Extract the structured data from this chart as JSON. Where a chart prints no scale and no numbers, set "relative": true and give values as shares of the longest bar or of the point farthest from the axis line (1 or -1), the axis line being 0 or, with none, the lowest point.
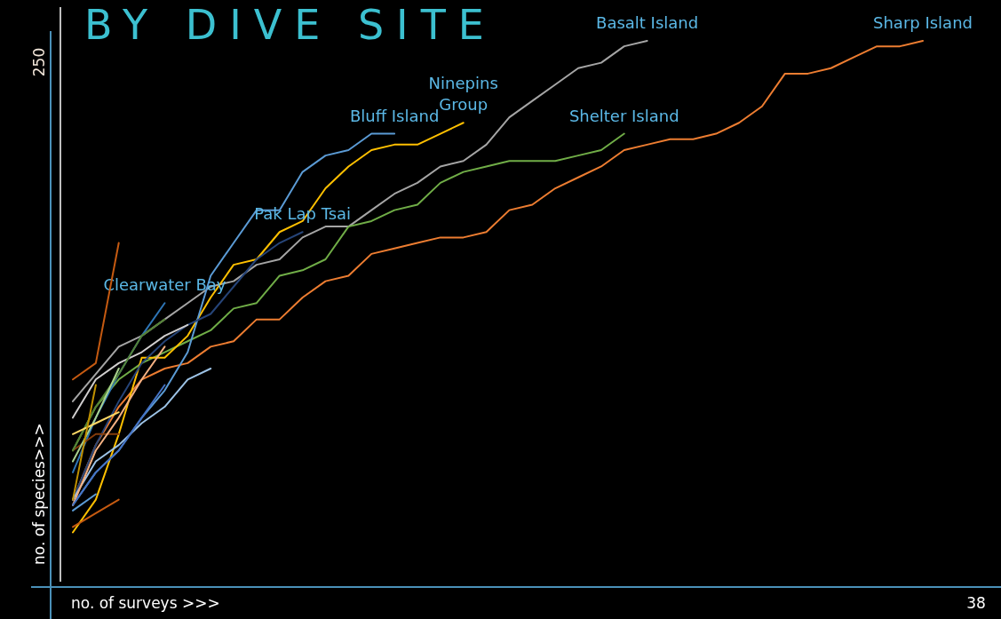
{
  "chart_data": {
    "type": "line",
    "title": "BY DIVE SITE",
    "xlabel": "no. of surveys >>>",
    "ylabel": "no. of species>>>",
    "relative": true,
    "annotations": [
      "250",
      "38"
    ],
    "categories": [
      null,
      null,
      null,
      null,
      null,
      null,
      null,
      null,
      null,
      null,
      null,
      null,
      null,
      null,
      null,
      null,
      null,
      null,
      null,
      null,
      null,
      null,
      null,
      null,
      null,
      null,
      null,
      null,
      null,
      null,
      null,
      null,
      null,
      null,
      null,
      null,
      null,
      null
    ],
    "series": [
      {
        "name": "Sharp Island",
        "color": "#ed7d31",
        "values": [
          0.16,
          0.26,
          0.33,
          0.38,
          0.4,
          0.41,
          0.44,
          0.45,
          0.49,
          0.49,
          0.53,
          0.56,
          0.57,
          0.61,
          0.62,
          0.63,
          0.64,
          0.64,
          0.65,
          0.69,
          0.7,
          0.73,
          0.75,
          0.77,
          0.8,
          0.81,
          0.82,
          0.82,
          0.83,
          0.85,
          0.88,
          0.94,
          0.94,
          0.95,
          0.97,
          0.99,
          0.99,
          1.0
        ]
      },
      {
        "name": "Basalt Island",
        "color": "#a5a5a5",
        "values": [
          0.34,
          0.39,
          0.44,
          0.46,
          0.49,
          0.52,
          0.55,
          0.56,
          0.59,
          0.6,
          0.64,
          0.66,
          0.66,
          0.69,
          0.72,
          0.74,
          0.77,
          0.78,
          0.81,
          0.86,
          0.89,
          0.92,
          0.95,
          0.96,
          0.99,
          1.0,
          null,
          null,
          null,
          null,
          null,
          null,
          null,
          null,
          null,
          null,
          null,
          null
        ]
      },
      {
        "name": "Shelter Island",
        "color": "#70ad47",
        "values": [
          0.25,
          0.33,
          0.38,
          0.41,
          0.43,
          0.45,
          0.47,
          0.51,
          0.52,
          0.57,
          0.58,
          0.6,
          0.66,
          0.67,
          0.69,
          0.7,
          0.74,
          0.76,
          0.77,
          0.78,
          0.78,
          0.78,
          0.79,
          0.8,
          0.83,
          null,
          null,
          null,
          null,
          null,
          null,
          null,
          null,
          null,
          null,
          null,
          null,
          null
        ]
      },
      {
        "name": "Ninepins\nGroup",
        "color": "#ffc000",
        "values": [
          0.1,
          0.16,
          0.28,
          0.42,
          0.42,
          0.46,
          0.53,
          0.59,
          0.6,
          0.65,
          0.67,
          0.73,
          0.77,
          0.8,
          0.81,
          0.81,
          0.83,
          0.85,
          null,
          null,
          null,
          null,
          null,
          null,
          null,
          null,
          null,
          null,
          null,
          null,
          null,
          null,
          null,
          null,
          null,
          null,
          null,
          null
        ]
      },
      {
        "name": "Bluff Island",
        "color": "#5b9bd5",
        "values": [
          0.15,
          0.21,
          0.25,
          0.31,
          0.36,
          0.43,
          0.57,
          0.63,
          0.69,
          0.69,
          0.76,
          0.79,
          0.8,
          0.83,
          0.83,
          null,
          null,
          null,
          null,
          null,
          null,
          null,
          null,
          null,
          null,
          null,
          null,
          null,
          null,
          null,
          null,
          null,
          null,
          null,
          null,
          null,
          null,
          null
        ]
      },
      {
        "name": "Pak Lap Tsai",
        "color": "#264478",
        "values": [
          0.16,
          0.26,
          0.34,
          0.41,
          0.45,
          0.48,
          0.5,
          0.55,
          0.6,
          0.63,
          0.65,
          null,
          null,
          null,
          null,
          null,
          null,
          null,
          null,
          null,
          null,
          null,
          null,
          null,
          null,
          null,
          null,
          null,
          null,
          null,
          null,
          null,
          null,
          null,
          null,
          null,
          null,
          null
        ]
      },
      {
        "name": "Clearwater Bay",
        "color": "#2e75b6",
        "values": [
          0.21,
          0.31,
          0.39,
          0.46,
          0.52,
          null,
          null,
          null,
          null,
          null,
          null,
          null,
          null,
          null,
          null,
          null,
          null,
          null,
          null,
          null,
          null,
          null,
          null,
          null,
          null,
          null,
          null,
          null,
          null,
          null,
          null,
          null,
          null,
          null,
          null,
          null,
          null,
          null
        ]
      },
      {
        "color": "#c55a11",
        "values": [
          0.38,
          0.41,
          0.63,
          null,
          null,
          null,
          null,
          null,
          null,
          null,
          null,
          null,
          null,
          null,
          null,
          null,
          null,
          null,
          null,
          null,
          null,
          null,
          null,
          null,
          null,
          null,
          null,
          null,
          null,
          null,
          null,
          null,
          null,
          null,
          null,
          null,
          null,
          null
        ]
      },
      {
        "color": "#c55a11",
        "values": [
          0.11,
          0.135,
          0.16,
          null,
          null,
          null,
          null,
          null,
          null,
          null,
          null,
          null,
          null,
          null,
          null,
          null,
          null,
          null,
          null,
          null,
          null,
          null,
          null,
          null,
          null,
          null,
          null,
          null,
          null,
          null,
          null,
          null,
          null,
          null,
          null,
          null,
          null,
          null
        ]
      },
      {
        "color": "#843c0c",
        "values": [
          0.25,
          0.28,
          0.28,
          null,
          null,
          null,
          null,
          null,
          null,
          null,
          null,
          null,
          null,
          null,
          null,
          null,
          null,
          null,
          null,
          null,
          null,
          null,
          null,
          null,
          null,
          null,
          null,
          null,
          null,
          null,
          null,
          null,
          null,
          null,
          null,
          null,
          null,
          null
        ]
      },
      {
        "color": "#9dc3e6",
        "values": [
          0.16,
          0.23,
          0.26,
          0.3,
          0.33,
          0.38,
          0.4,
          null,
          null,
          null,
          null,
          null,
          null,
          null,
          null,
          null,
          null,
          null,
          null,
          null,
          null,
          null,
          null,
          null,
          null,
          null,
          null,
          null,
          null,
          null,
          null,
          null,
          null,
          null,
          null,
          null,
          null,
          null
        ]
      },
      {
        "color": "#d0cece",
        "values": [
          0.31,
          0.38,
          0.41,
          0.43,
          0.46,
          0.48,
          null,
          null,
          null,
          null,
          null,
          null,
          null,
          null,
          null,
          null,
          null,
          null,
          null,
          null,
          null,
          null,
          null,
          null,
          null,
          null,
          null,
          null,
          null,
          null,
          null,
          null,
          null,
          null,
          null,
          null,
          null,
          null
        ]
      },
      {
        "color": "#548235",
        "values": [
          0.25,
          0.33,
          0.39,
          0.46,
          0.49,
          null,
          null,
          null,
          null,
          null,
          null,
          null,
          null,
          null,
          null,
          null,
          null,
          null,
          null,
          null,
          null,
          null,
          null,
          null,
          null,
          null,
          null,
          null,
          null,
          null,
          null,
          null,
          null,
          null,
          null,
          null,
          null,
          null
        ]
      },
      {
        "color": "#a9d18e",
        "values": [
          0.23,
          0.31,
          0.4,
          null,
          null,
          null,
          null,
          null,
          null,
          null,
          null,
          null,
          null,
          null,
          null,
          null,
          null,
          null,
          null,
          null,
          null,
          null,
          null,
          null,
          null,
          null,
          null,
          null,
          null,
          null,
          null,
          null,
          null,
          null,
          null,
          null,
          null,
          null
        ]
      },
      {
        "color": "#f4b183",
        "values": [
          0.15,
          0.25,
          0.31,
          0.38,
          0.44,
          null,
          null,
          null,
          null,
          null,
          null,
          null,
          null,
          null,
          null,
          null,
          null,
          null,
          null,
          null,
          null,
          null,
          null,
          null,
          null,
          null,
          null,
          null,
          null,
          null,
          null,
          null,
          null,
          null,
          null,
          null,
          null,
          null
        ]
      },
      {
        "color": "#ffd966",
        "values": [
          0.28,
          0.3,
          0.32,
          null,
          null,
          null,
          null,
          null,
          null,
          null,
          null,
          null,
          null,
          null,
          null,
          null,
          null,
          null,
          null,
          null,
          null,
          null,
          null,
          null,
          null,
          null,
          null,
          null,
          null,
          null,
          null,
          null,
          null,
          null,
          null,
          null,
          null,
          null
        ]
      },
      {
        "color": "#4472c4",
        "values": [
          0.15,
          0.21,
          0.25,
          0.31,
          0.37,
          null,
          null,
          null,
          null,
          null,
          null,
          null,
          null,
          null,
          null,
          null,
          null,
          null,
          null,
          null,
          null,
          null,
          null,
          null,
          null,
          null,
          null,
          null,
          null,
          null,
          null,
          null,
          null,
          null,
          null,
          null,
          null,
          null
        ]
      },
      {
        "color": "#bf9000",
        "values": [
          0.16,
          0.37,
          null,
          null,
          null,
          null,
          null,
          null,
          null,
          null,
          null,
          null,
          null,
          null,
          null,
          null,
          null,
          null,
          null,
          null,
          null,
          null,
          null,
          null,
          null,
          null,
          null,
          null,
          null,
          null,
          null,
          null,
          null,
          null,
          null,
          null,
          null,
          null
        ]
      },
      {
        "color": "#5b9bd5",
        "values": [
          0.14,
          0.17,
          null,
          null,
          null,
          null,
          null,
          null,
          null,
          null,
          null,
          null,
          null,
          null,
          null,
          null,
          null,
          null,
          null,
          null,
          null,
          null,
          null,
          null,
          null,
          null,
          null,
          null,
          null,
          null,
          null,
          null,
          null,
          null,
          null,
          null,
          null,
          null
        ]
      }
    ]
  }
}
